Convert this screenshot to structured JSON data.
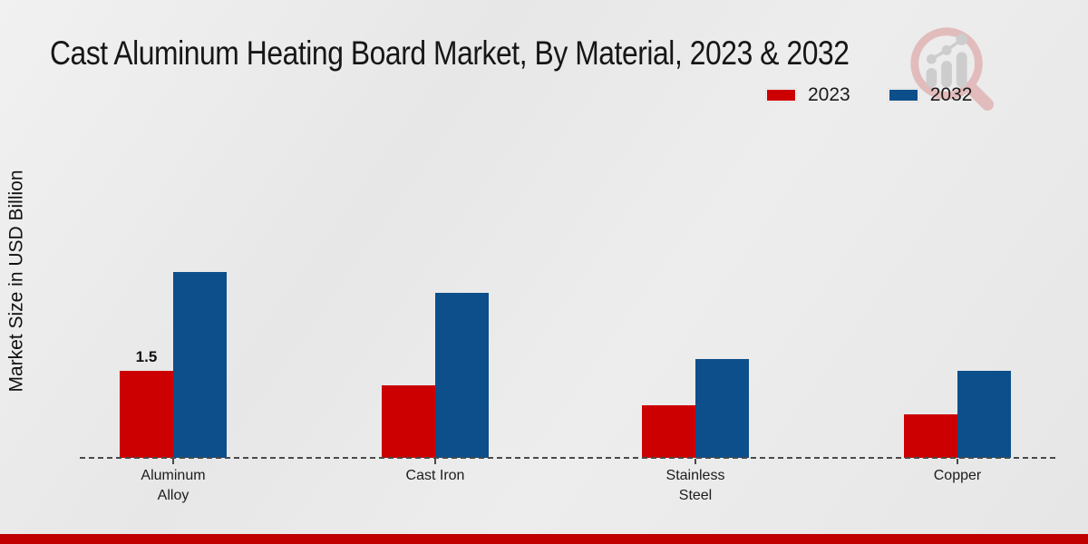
{
  "title": "Cast Aluminum Heating Board Market, By Material, 2023 & 2032",
  "y_axis_label": "Market Size in USD Billion",
  "colors": {
    "series_2023": "#cc0000",
    "series_2032": "#0d4f8b",
    "bottom_strip": "#c00000",
    "axis": "#4a4a4a",
    "background": "#eaeaea"
  },
  "watermark_icon": "magnifier-growth-bars-logo",
  "chart_data": {
    "type": "bar",
    "title": "Cast Aluminum Heating Board Market, By Material, 2023 & 2032",
    "categories": [
      "Aluminum Alloy",
      "Cast Iron",
      "Stainless Steel",
      "Copper"
    ],
    "series": [
      {
        "name": "2023",
        "color": "#cc0000",
        "values": [
          1.5,
          1.25,
          0.9,
          0.75
        ]
      },
      {
        "name": "2032",
        "color": "#0d4f8b",
        "values": [
          3.2,
          2.85,
          1.7,
          1.5
        ]
      }
    ],
    "bar_value_labels": [
      {
        "series_index": 0,
        "category_index": 0,
        "text": "1.5"
      }
    ],
    "xlabel": "",
    "ylabel": "Market Size in USD Billion",
    "ylim": [
      0,
      3.5
    ],
    "grid": false,
    "y_axis_ticks_visible": false,
    "legend_position": "top-right",
    "x_axis_style": "dashed"
  }
}
